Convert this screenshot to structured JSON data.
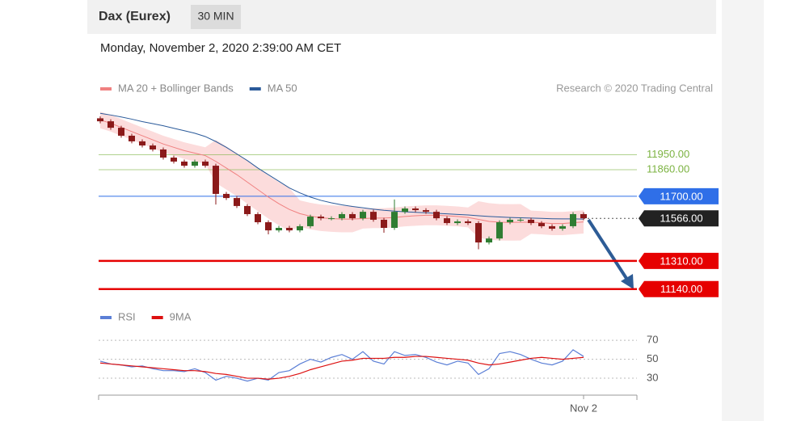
{
  "chart_data": [
    {
      "type": "candlestick",
      "title": "Dax (Eurex)",
      "timeframe": "30 MIN",
      "subtitle": "Monday, November 2, 2020 2:39:00 AM CET",
      "source": "Research © 2020 Trading Central",
      "open": [
        12170,
        12152,
        12113,
        12065,
        12031,
        12006,
        11982,
        11933,
        11909,
        11884,
        11909,
        11884,
        11714,
        11689,
        11641,
        11592,
        11543,
        11494,
        11509,
        11494,
        11519,
        11577,
        11567,
        11567,
        11592,
        11567,
        11606,
        11558,
        11509,
        11606,
        11626,
        11616,
        11606,
        11567,
        11538,
        11548,
        11538,
        11421,
        11445,
        11543,
        11558,
        11558,
        11538,
        11519,
        11504,
        11519,
        11592
      ],
      "high": [
        12182,
        12164,
        12125,
        12077,
        12043,
        12018,
        11994,
        11945,
        11921,
        11921,
        11921,
        11896,
        11726,
        11701,
        11653,
        11604,
        11555,
        11521,
        11521,
        11531,
        11589,
        11589,
        11579,
        11604,
        11604,
        11618,
        11618,
        11570,
        11680,
        11638,
        11638,
        11628,
        11618,
        11579,
        11560,
        11560,
        11550,
        11457,
        11555,
        11570,
        11570,
        11570,
        11550,
        11531,
        11531,
        11604,
        11604
      ],
      "low": [
        12140,
        12101,
        12053,
        12019,
        11994,
        11970,
        11921,
        11897,
        11872,
        11872,
        11872,
        11650,
        11677,
        11629,
        11580,
        11531,
        11470,
        11482,
        11482,
        11482,
        11507,
        11555,
        11555,
        11555,
        11555,
        11555,
        11546,
        11480,
        11497,
        11594,
        11604,
        11594,
        11555,
        11526,
        11526,
        11526,
        11380,
        11409,
        11433,
        11531,
        11546,
        11526,
        11507,
        11492,
        11492,
        11507,
        11555
      ],
      "close": [
        12152,
        12113,
        12065,
        12031,
        12006,
        11982,
        11933,
        11909,
        11884,
        11909,
        11884,
        11714,
        11689,
        11641,
        11592,
        11543,
        11494,
        11509,
        11494,
        11519,
        11577,
        11567,
        11567,
        11592,
        11567,
        11606,
        11558,
        11509,
        11606,
        11626,
        11616,
        11606,
        11567,
        11538,
        11548,
        11538,
        11421,
        11445,
        11543,
        11558,
        11558,
        11538,
        11519,
        11504,
        11519,
        11592,
        11567
      ],
      "up_color": "#2f7d32",
      "down_color": "#8b1a1a",
      "series": [
        {
          "name": "MA 20 + Bollinger Bands",
          "color": "#f08080",
          "band_color": "#fcdcdc",
          "values": [
            12160,
            12140,
            12115,
            12090,
            12065,
            12040,
            12015,
            11995,
            11975,
            11960,
            11945,
            11910,
            11870,
            11830,
            11785,
            11740,
            11695,
            11655,
            11620,
            11595,
            11580,
            11570,
            11565,
            11562,
            11562,
            11565,
            11568,
            11568,
            11572,
            11578,
            11582,
            11585,
            11585,
            11582,
            11578,
            11572,
            11560,
            11548,
            11543,
            11542,
            11543,
            11543,
            11540,
            11535,
            11535,
            11540,
            11545
          ],
          "upper": [
            12210,
            12190,
            12165,
            12140,
            12115,
            12090,
            12065,
            12045,
            12025,
            12010,
            11995,
            12040,
            12000,
            11960,
            11915,
            11870,
            11825,
            11785,
            11750,
            11675,
            11660,
            11650,
            11645,
            11642,
            11642,
            11625,
            11628,
            11628,
            11632,
            11638,
            11642,
            11645,
            11645,
            11642,
            11638,
            11632,
            11670,
            11658,
            11653,
            11652,
            11653,
            11613,
            11610,
            11605,
            11605,
            11610,
            11615
          ],
          "lower": [
            12110,
            12090,
            12065,
            12040,
            12015,
            11990,
            11965,
            11945,
            11925,
            11910,
            11895,
            11780,
            11740,
            11700,
            11655,
            11610,
            11565,
            11525,
            11490,
            11515,
            11500,
            11490,
            11485,
            11482,
            11482,
            11505,
            11508,
            11508,
            11512,
            11518,
            11522,
            11525,
            11525,
            11522,
            11518,
            11512,
            11450,
            11438,
            11433,
            11432,
            11433,
            11473,
            11470,
            11465,
            11465,
            11470,
            11475
          ]
        },
        {
          "name": "MA 50",
          "color": "#2a5a9a",
          "values": [
            12200,
            12190,
            12178,
            12165,
            12150,
            12138,
            12125,
            12110,
            12095,
            12080,
            12060,
            12030,
            11995,
            11955,
            11915,
            11870,
            11830,
            11790,
            11750,
            11720,
            11695,
            11675,
            11660,
            11648,
            11638,
            11630,
            11622,
            11615,
            11610,
            11606,
            11603,
            11600,
            11597,
            11594,
            11590,
            11587,
            11582,
            11578,
            11575,
            11572,
            11570,
            11568,
            11566,
            11564,
            11563,
            11563,
            11562
          ]
        }
      ],
      "ylim": [
        11080,
        12250
      ],
      "levels": [
        {
          "value": 11950,
          "label": "11950.00",
          "color": "#7cb342",
          "box": false
        },
        {
          "value": 11860,
          "label": "11860.00",
          "color": "#7cb342",
          "box": false
        },
        {
          "value": 11700,
          "label": "11700.00",
          "color": "#2f6fe8",
          "box": true
        },
        {
          "value": 11566,
          "label": "11566.00",
          "color": "#222222",
          "box": true,
          "dotted": true
        },
        {
          "value": 11310,
          "label": "11310.00",
          "color": "#e60000",
          "box": true
        },
        {
          "value": 11140,
          "label": "11140.00",
          "color": "#e60000",
          "box": true
        }
      ]
    },
    {
      "type": "line",
      "categories": [
        null,
        null,
        null,
        null,
        null,
        null,
        null,
        null,
        null,
        null,
        null,
        null,
        null,
        null,
        null,
        null,
        null,
        null,
        null,
        null,
        null,
        null,
        null,
        null,
        null,
        null,
        null,
        null,
        null,
        null,
        null,
        null,
        null,
        null,
        null,
        null,
        null,
        null,
        null,
        null,
        null,
        null,
        null,
        null,
        null,
        null,
        "Nov 2"
      ],
      "series": [
        {
          "name": "RSI",
          "color": "#5b7fd6",
          "values": [
            48,
            45,
            44,
            42,
            43,
            40,
            38,
            38,
            37,
            40,
            36,
            28,
            32,
            30,
            27,
            30,
            28,
            36,
            38,
            45,
            50,
            47,
            52,
            55,
            50,
            58,
            48,
            45,
            58,
            54,
            55,
            52,
            47,
            44,
            48,
            46,
            34,
            40,
            56,
            58,
            55,
            50,
            46,
            44,
            48,
            60,
            53
          ]
        },
        {
          "name": "9MA",
          "color": "#dd1111",
          "values": [
            46,
            45,
            44,
            43,
            42,
            41,
            40,
            39,
            38,
            38,
            37,
            35,
            34,
            32,
            30,
            30,
            29,
            30,
            32,
            35,
            39,
            42,
            45,
            48,
            49,
            51,
            51,
            51,
            52,
            52,
            53,
            53,
            52,
            51,
            50,
            49,
            46,
            44,
            45,
            47,
            49,
            51,
            52,
            51,
            50,
            51,
            52
          ]
        }
      ],
      "ylim": [
        13,
        88
      ],
      "yticks": [
        30,
        50,
        70
      ],
      "grid": true
    }
  ]
}
